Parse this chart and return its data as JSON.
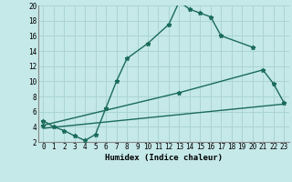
{
  "xlabel": "Humidex (Indice chaleur)",
  "bg_color": "#c5e8e8",
  "grid_color": "#aad4d4",
  "line_color": "#1a6b5a",
  "xlim": [
    -0.5,
    23.5
  ],
  "ylim": [
    2,
    20
  ],
  "yticks": [
    2,
    4,
    6,
    8,
    10,
    12,
    14,
    16,
    18,
    20
  ],
  "xticks": [
    0,
    1,
    2,
    3,
    4,
    5,
    6,
    7,
    8,
    9,
    10,
    11,
    12,
    13,
    14,
    15,
    16,
    17,
    18,
    19,
    20,
    21,
    22,
    23
  ],
  "line1_x": [
    0,
    1,
    2,
    3,
    4,
    5,
    6,
    7,
    8,
    10,
    12,
    13,
    14,
    15,
    16,
    17,
    20
  ],
  "line1_y": [
    4.8,
    4.0,
    3.5,
    2.8,
    2.2,
    3.0,
    6.5,
    10.0,
    13.0,
    15.0,
    17.5,
    20.5,
    19.5,
    19.0,
    18.5,
    16.0,
    14.5
  ],
  "line2_x": [
    0,
    13,
    21,
    22,
    23
  ],
  "line2_y": [
    4.2,
    8.5,
    11.5,
    9.7,
    7.2
  ],
  "line3_x": [
    0,
    23
  ],
  "line3_y": [
    3.8,
    7.0
  ],
  "tick_fontsize": 5.5,
  "xlabel_fontsize": 6.5
}
